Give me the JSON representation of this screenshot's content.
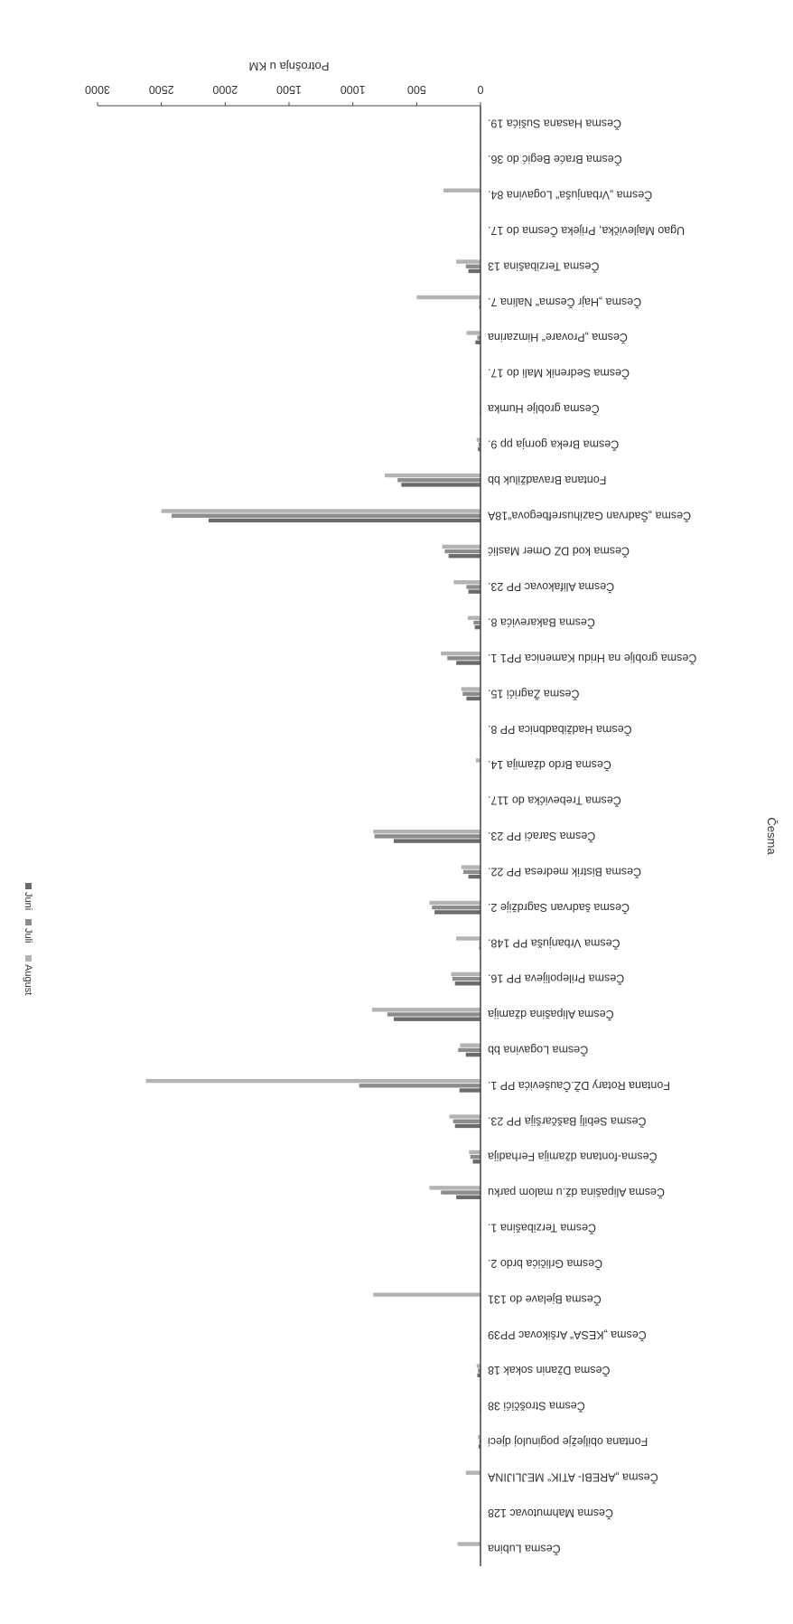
{
  "chart_data": {
    "type": "bar",
    "orientation": "horizontal",
    "rotated": "scanned page rotated 180 degrees",
    "title": "",
    "xlabel": "Potrošnja u KM",
    "ylabel": "Česma",
    "xlim": [
      0,
      3000
    ],
    "xticks": [
      0,
      500,
      1000,
      1500,
      2000,
      2500,
      3000
    ],
    "grid": false,
    "legend_position": "top",
    "categories": [
      "Česma Hasana Sušića 19.",
      "Česma Braće Begić do 36.",
      "Česma „Vrbanjuša“ Logavina 84.",
      "Ugao Majlevička, Prijeka Česma do 17.",
      "Česma Terzibašina 13",
      "Česma „Hajr Česma“ Nalina 7.",
      "Česma „Provare“ Himzarina",
      "Česma Sedrenik Mali do 17.",
      "Česma groblje Humka",
      "Česma Breka gornja pp 9.",
      "Fontana Bravadžiluk bb",
      "Česma „Šadrvan Gazihusrefbegova“18A",
      "Česma kod DZ Omer Maslić",
      "Česma Alifakovac PP 23.",
      "Česma Bakarevića 8.",
      "Česma groblje na Hridu Kamenica PP1 1.",
      "Česma Žagrići 15.",
      "Česma Hadžibadbnica PP 8.",
      "Česma Brdo džamija 14.",
      "Česma Trebevićka do 117.",
      "Česma Saraći PP 23.",
      "Česma Bistrik medresa PP 22.",
      "Česma šadrvan Sagrdžije 2.",
      "Česma Vrbanjuša PP 148.",
      "Česma Prilepolijeva PP 16.",
      "Česma Alipašina džamija",
      "Česma Logavina bb",
      "Fontana Rotary DŽ.Čauševića PP 1.",
      "Česma Sebilj Baščaršija PP 23.",
      "Česma-fontana džamija Ferhadija",
      "Česma Alipašina dž.u malom parku",
      "Česma Terzibašina 1.",
      "Česma Grličića brdo 2.",
      "Česma Bjelave do 131",
      "Česma „KESA“ Aršikovac PP39",
      "Česma Džanin sokak 18",
      "Česma Stroščići 38",
      "Fontana obilježje poginuloj djeci",
      "Česma „AREBI- ATIK“ MEJLIJINA",
      "Česma Mahmutovac 128",
      "Česma Lubina"
    ],
    "series": [
      {
        "name": "Juni",
        "color": "#6b6b6b",
        "values": [
          5,
          5,
          5,
          5,
          95,
          10,
          40,
          5,
          5,
          20,
          620,
          2130,
          250,
          95,
          45,
          190,
          110,
          5,
          5,
          5,
          680,
          95,
          360,
          10,
          200,
          680,
          115,
          165,
          200,
          60,
          190,
          5,
          5,
          5,
          5,
          25,
          5,
          15,
          5,
          5,
          5
        ]
      },
      {
        "name": "Juli",
        "color": "#8c8c8c",
        "values": [
          5,
          5,
          5,
          5,
          115,
          10,
          25,
          5,
          5,
          15,
          650,
          2420,
          280,
          110,
          55,
          260,
          140,
          5,
          5,
          5,
          830,
          135,
          380,
          10,
          220,
          730,
          175,
          950,
          215,
          80,
          310,
          5,
          5,
          5,
          5,
          20,
          5,
          10,
          5,
          5,
          5
        ]
      },
      {
        "name": "August",
        "color": "#b3b3b3",
        "values": [
          5,
          5,
          290,
          5,
          190,
          500,
          110,
          5,
          5,
          30,
          750,
          2500,
          300,
          210,
          100,
          310,
          150,
          5,
          35,
          5,
          840,
          150,
          400,
          190,
          230,
          850,
          160,
          2620,
          245,
          90,
          400,
          5,
          5,
          840,
          5,
          30,
          5,
          20,
          115,
          5,
          180
        ]
      }
    ]
  }
}
